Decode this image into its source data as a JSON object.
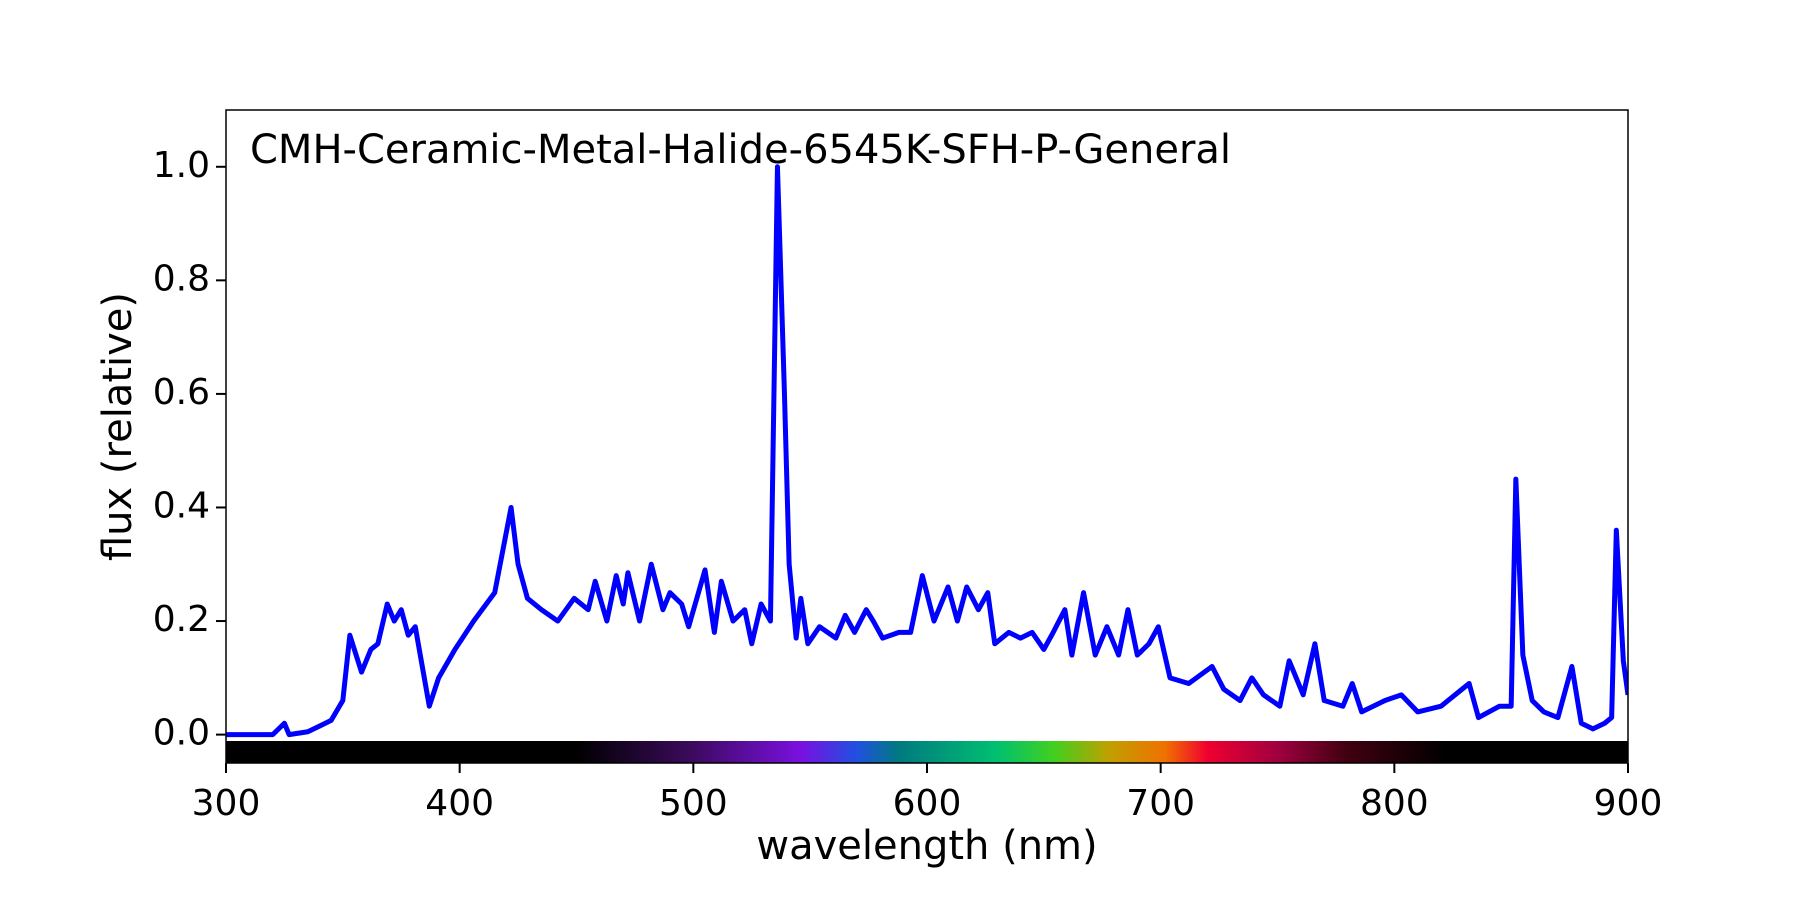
{
  "chart_data": {
    "type": "line",
    "title": "CMH-Ceramic-Metal-Halide-6545K-SFH-P-General",
    "x_label": "wavelength (nm)",
    "y_label": "flux (relative)",
    "xlim": [
      300,
      900
    ],
    "ylim": [
      -0.05,
      1.1
    ],
    "xticks": [
      300,
      400,
      500,
      600,
      700,
      800,
      900
    ],
    "yticks": [
      {
        "value": 0,
        "label": "0.0"
      },
      0.2,
      0.4,
      0.6,
      0.8,
      {
        "value": 1,
        "label": "1.0"
      }
    ],
    "x": [
      300,
      320,
      325,
      327,
      335,
      340,
      345,
      350,
      353,
      358,
      362,
      365,
      369,
      372,
      375,
      378,
      381,
      387,
      391,
      398,
      406,
      415,
      422,
      425,
      429,
      435,
      442,
      449,
      455,
      458,
      463,
      467,
      470,
      472,
      477,
      482,
      487,
      490,
      495,
      498,
      505,
      509,
      512,
      517,
      522,
      525,
      529,
      533,
      536,
      539,
      541,
      544,
      546,
      549,
      554,
      561,
      565,
      569,
      574,
      577,
      581,
      588,
      593,
      598,
      603,
      609,
      613,
      617,
      622,
      626,
      629,
      635,
      640,
      645,
      650,
      654,
      659,
      662,
      667,
      672,
      677,
      682,
      686,
      690,
      695,
      699,
      704,
      712,
      722,
      727,
      734,
      739,
      744,
      751,
      755,
      761,
      766,
      770,
      778,
      782,
      786,
      796,
      803,
      810,
      820,
      832,
      836,
      845,
      850,
      852,
      855,
      859,
      864,
      870,
      876,
      880,
      885,
      890,
      893,
      895,
      898,
      900
    ],
    "series": [
      {
        "name": "flux",
        "color": "#0000ff",
        "values": [
          0,
          0,
          0.02,
          0,
          0.005,
          0.015,
          0.025,
          0.06,
          0.175,
          0.11,
          0.15,
          0.16,
          0.23,
          0.2,
          0.22,
          0.175,
          0.19,
          0.05,
          0.1,
          0.15,
          0.2,
          0.25,
          0.4,
          0.3,
          0.24,
          0.22,
          0.2,
          0.24,
          0.22,
          0.27,
          0.2,
          0.28,
          0.23,
          0.285,
          0.2,
          0.3,
          0.22,
          0.25,
          0.23,
          0.19,
          0.29,
          0.18,
          0.27,
          0.2,
          0.22,
          0.16,
          0.23,
          0.2,
          1.0,
          0.6,
          0.3,
          0.17,
          0.24,
          0.16,
          0.19,
          0.17,
          0.21,
          0.18,
          0.22,
          0.2,
          0.17,
          0.18,
          0.18,
          0.28,
          0.2,
          0.26,
          0.2,
          0.26,
          0.22,
          0.25,
          0.16,
          0.18,
          0.17,
          0.18,
          0.15,
          0.18,
          0.22,
          0.14,
          0.25,
          0.14,
          0.19,
          0.14,
          0.22,
          0.14,
          0.16,
          0.19,
          0.1,
          0.09,
          0.12,
          0.08,
          0.06,
          0.1,
          0.07,
          0.05,
          0.13,
          0.07,
          0.16,
          0.06,
          0.05,
          0.09,
          0.04,
          0.06,
          0.07,
          0.04,
          0.05,
          0.09,
          0.03,
          0.05,
          0.05,
          0.45,
          0.14,
          0.06,
          0.04,
          0.03,
          0.12,
          0.02,
          0.01,
          0.02,
          0.03,
          0.36,
          0.13,
          0.07
        ]
      }
    ]
  }
}
